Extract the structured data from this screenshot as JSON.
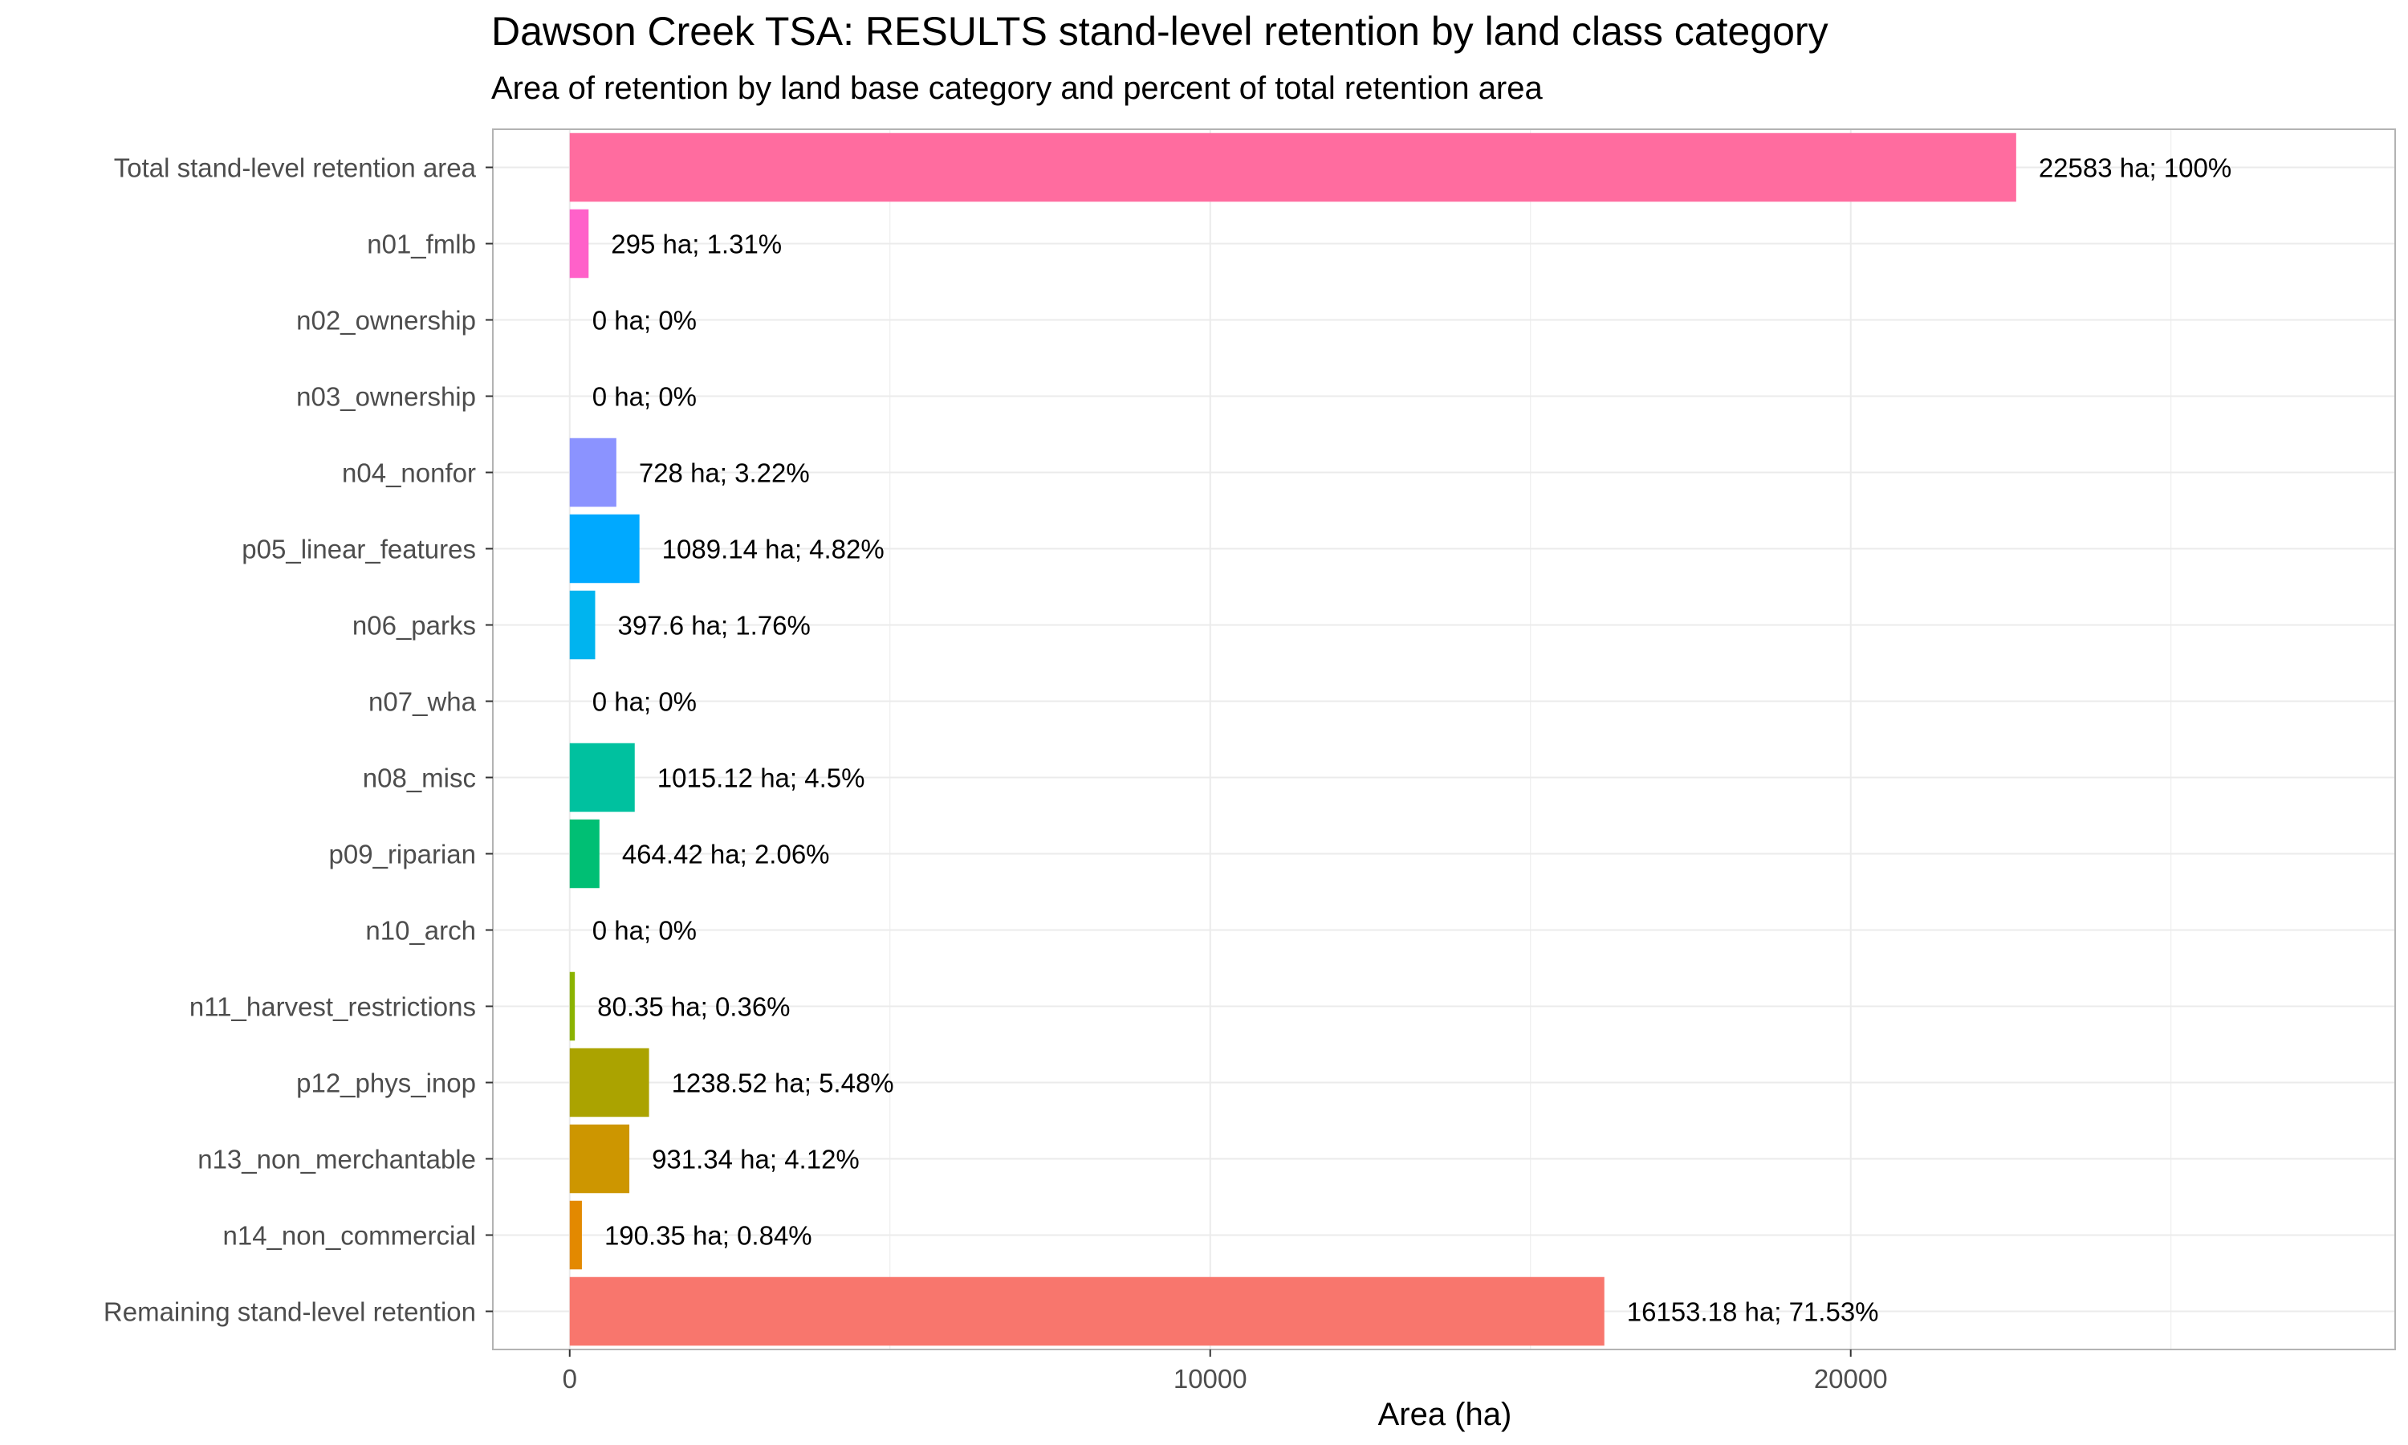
{
  "chart_data": {
    "type": "bar",
    "orientation": "horizontal",
    "title": "Dawson Creek TSA: RESULTS stand-level retention by land class category",
    "subtitle": "Area of retention by land base category and percent of total retention area",
    "xlabel": "Area (ha)",
    "ylabel": "",
    "xlim": [
      -1200,
      28500
    ],
    "x_ticks": [
      0,
      10000,
      20000
    ],
    "x_tick_labels": [
      "0",
      "10000",
      "20000"
    ],
    "grid": true,
    "legend": "none",
    "categories": [
      "Total stand-level retention area",
      "n01_fmlb",
      "n02_ownership",
      "n03_ownership",
      "n04_nonfor",
      "p05_linear_features",
      "n06_parks",
      "n07_wha",
      "n08_misc",
      "p09_riparian",
      "n10_arch",
      "n11_harvest_restrictions",
      "p12_phys_inop",
      "n13_non_merchantable",
      "n14_non_commercial",
      "Remaining stand-level retention"
    ],
    "values": [
      22583,
      295,
      0,
      0,
      728,
      1089.14,
      397.6,
      0,
      1015.12,
      464.42,
      0,
      80.35,
      1238.52,
      931.34,
      190.35,
      16153.18
    ],
    "data_labels": [
      "22583 ha; 100%",
      "295 ha; 1.31%",
      "0 ha; 0%",
      "0 ha; 0%",
      "728 ha; 3.22%",
      "1089.14 ha; 4.82%",
      "397.6 ha; 1.76%",
      "0 ha; 0%",
      "1015.12 ha; 4.5%",
      "464.42 ha; 2.06%",
      "0 ha; 0%",
      "80.35 ha; 0.36%",
      "1238.52 ha; 5.48%",
      "931.34 ha; 4.12%",
      "190.35 ha; 0.84%",
      "16153.18 ha; 71.53%"
    ],
    "colors": [
      "#FF6C9F",
      "#FF61C9",
      "#E46CF0",
      "#B983FF",
      "#8B93FF",
      "#00A9FF",
      "#00B4EF",
      "#00BDD2",
      "#00C19F",
      "#00BF74",
      "#55BB3E",
      "#8BB300",
      "#ABA300",
      "#CD9600",
      "#E38900",
      "#F8766D"
    ]
  }
}
